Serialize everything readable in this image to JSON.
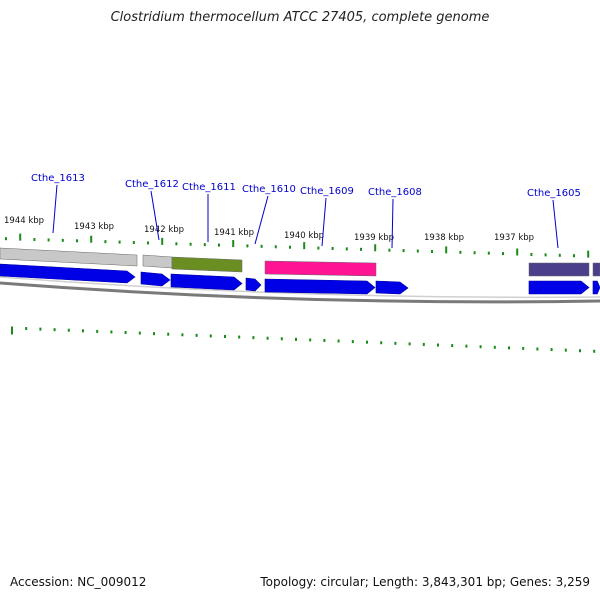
{
  "title": "Clostridium thermocellum ATCC 27405, complete genome",
  "footer": {
    "accession": "Accession: NC_009012",
    "summary": "Topology: circular; Length: 3,843,301 bp; Genes: 3,259"
  },
  "colors": {
    "cds": "#0000e6",
    "tick": "#1a8a1a",
    "label": "#0000cc",
    "backbone": "#7a7a7a",
    "gray_feature": "#c8c8c8",
    "olive_feature": "#6b8e23",
    "pink_feature": "#ff1493",
    "slate_feature": "#4b3f8c"
  },
  "kbp_labels": [
    "1944 kbp",
    "1943 kbp",
    "1942 kbp",
    "1941 kbp",
    "1940 kbp",
    "1939 kbp",
    "1938 kbp",
    "1937 kbp"
  ],
  "gene_labels": [
    "Cthe_1613",
    "Cthe_1612",
    "Cthe_1611",
    "Cthe_1610",
    "Cthe_1609",
    "Cthe_1608",
    "Cthe_1605"
  ]
}
